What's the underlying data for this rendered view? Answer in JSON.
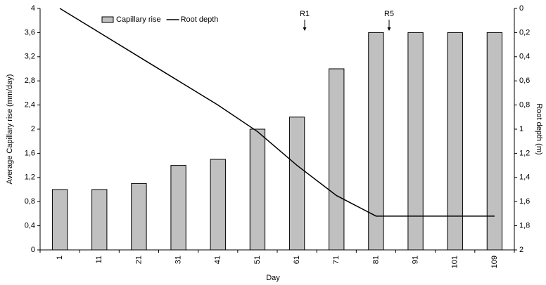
{
  "chart_data": {
    "type": "bar-line",
    "x_label": "Day",
    "y_label": "Average Capillary rise (mm/day)",
    "y2_label": "Root depth (m)",
    "categories": [
      "1",
      "11",
      "21",
      "31",
      "41",
      "51",
      "61",
      "71",
      "81",
      "91",
      "101",
      "109"
    ],
    "series": [
      {
        "name": "Capillary rise",
        "type": "bar",
        "color": "#c0c0c0",
        "values": [
          1,
          1,
          1.1,
          1.4,
          1.5,
          2,
          2.2,
          3,
          3.6,
          3.6,
          3.6,
          3.6
        ]
      },
      {
        "name": "Root depth",
        "type": "line",
        "axis": "y2",
        "color": "#000000",
        "values": [
          0,
          0.2,
          0.4,
          0.6,
          0.8,
          1.02,
          1.3,
          1.55,
          1.72,
          1.72,
          1.72,
          1.72
        ]
      }
    ],
    "ylim": [
      0,
      4
    ],
    "yticks": [
      0,
      {
        "value": 0.4,
        "label": "0,4"
      },
      {
        "value": 0.8,
        "label": "0,8"
      },
      {
        "value": 1.2,
        "label": "1,2"
      },
      {
        "value": 1.6,
        "label": "1,6"
      },
      2,
      {
        "value": 2.4,
        "label": "2,4"
      },
      {
        "value": 2.8,
        "label": "2,8"
      },
      {
        "value": 3.2,
        "label": "3,2"
      },
      {
        "value": 3.6,
        "label": "3,6"
      },
      4
    ],
    "y2lim": [
      0,
      2
    ],
    "y2_inverted": true,
    "y2ticks": [
      0,
      {
        "value": 0.2,
        "label": "0,2"
      },
      {
        "value": 0.4,
        "label": "0,4"
      },
      {
        "value": 0.6,
        "label": "0,6"
      },
      {
        "value": 0.8,
        "label": "0,8"
      },
      1,
      {
        "value": 1.2,
        "label": "1,2"
      },
      {
        "value": 1.4,
        "label": "1,4"
      },
      {
        "value": 1.6,
        "label": "1,6"
      },
      {
        "value": 1.8,
        "label": "1,8"
      },
      2
    ],
    "annotations": [
      "R1",
      "R5"
    ],
    "legend": "top-left",
    "grid": false
  }
}
